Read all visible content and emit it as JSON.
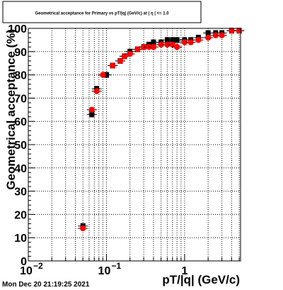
{
  "chart_data": {
    "type": "scatter",
    "title": "Geometrical acceptance for Primary vs pT/|q| (GeV/c) at | η | <= 1.0",
    "xlabel": "pT/|q| (GeV/c)",
    "ylabel": "Geometrical acceptance (%)",
    "x_scale": "log",
    "xlim": [
      0.01,
      5.2
    ],
    "ylim": [
      0,
      100
    ],
    "grid": true,
    "x_major_ticks": [
      {
        "value": 0.01,
        "base": "10",
        "exp": "−2"
      },
      {
        "value": 0.1,
        "base": "10",
        "exp": "−1"
      },
      {
        "value": 1,
        "base": "1",
        "exp": ""
      }
    ],
    "y_ticks": [
      "0",
      "10",
      "20",
      "30",
      "40",
      "50",
      "60",
      "70",
      "80",
      "90",
      "100"
    ],
    "series": [
      {
        "color": "#000000",
        "marker": "square",
        "x": [
          0.05,
          0.065,
          0.075,
          0.1,
          0.12,
          0.15,
          0.17,
          0.2,
          0.25,
          0.3,
          0.35,
          0.4,
          0.5,
          0.6,
          0.7,
          0.8,
          1.0,
          1.2,
          1.5,
          2.0,
          2.5,
          3.0,
          4.0,
          5.0
        ],
        "y": [
          15,
          63,
          74,
          80,
          84,
          86,
          88,
          90,
          91,
          92,
          93,
          94,
          94,
          95,
          95,
          95,
          95,
          95,
          96,
          98,
          98,
          98,
          99,
          99
        ]
      },
      {
        "color": "#ff0000",
        "marker": "circle",
        "x": [
          0.05,
          0.065,
          0.075,
          0.09,
          0.12,
          0.15,
          0.17,
          0.2,
          0.25,
          0.3,
          0.35,
          0.4,
          0.5,
          0.6,
          0.7,
          0.8,
          1.0,
          1.2,
          1.5,
          2.0,
          2.5,
          3.0,
          4.0,
          5.0
        ],
        "y": [
          14,
          65,
          73,
          80,
          84,
          86,
          88,
          89,
          91,
          92,
          92,
          92,
          93,
          93,
          93,
          92,
          94,
          94,
          95,
          96,
          97,
          97,
          99,
          99
        ]
      }
    ]
  },
  "footer": {
    "timestamp": "Mon Dec 20 21:19:25 2021"
  }
}
